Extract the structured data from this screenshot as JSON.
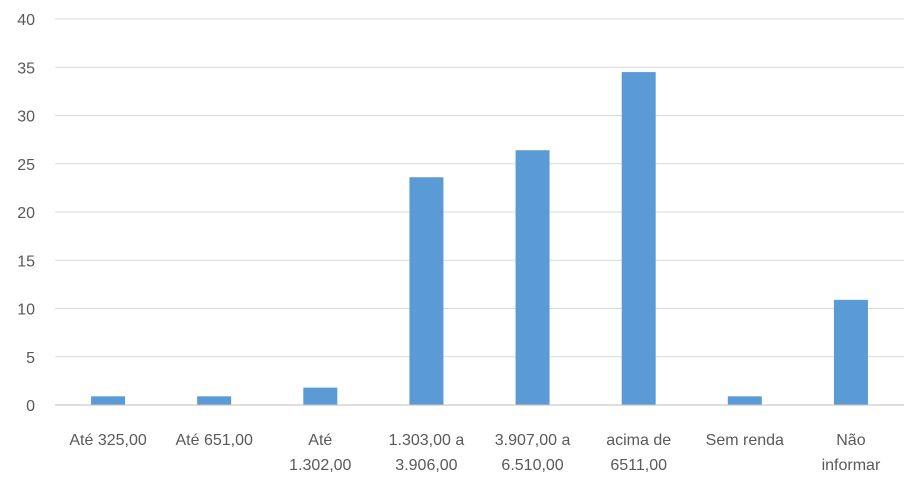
{
  "chart_data": {
    "type": "bar",
    "categories": [
      [
        "Até 325,00"
      ],
      [
        "Até 651,00"
      ],
      [
        "Até",
        "1.302,00"
      ],
      [
        "1.303,00 a",
        "3.906,00"
      ],
      [
        "3.907,00 a",
        "6.510,00"
      ],
      [
        "acima de",
        "6511,00"
      ],
      [
        "Sem renda"
      ],
      [
        "Não",
        "informar"
      ]
    ],
    "values": [
      0.9,
      0.9,
      1.8,
      23.6,
      26.4,
      34.5,
      0.9,
      10.9
    ],
    "ylim": [
      0,
      40
    ],
    "yticks": [
      "0",
      "5",
      "10",
      "15",
      "20",
      "25",
      "30",
      "35",
      "40"
    ],
    "grid": true,
    "colors": {
      "bar": "#5b9bd5",
      "grid": "#d9d9d9",
      "axis": "#bfbfbf",
      "text": "#595959"
    }
  }
}
